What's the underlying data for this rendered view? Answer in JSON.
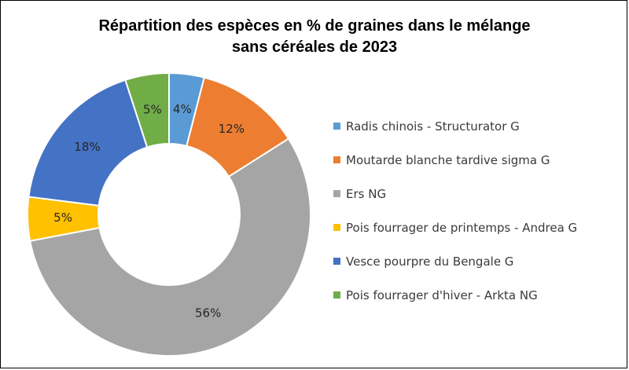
{
  "chart_data": {
    "type": "pie",
    "title": "Répartition des espèces en % de graines dans le mélange sans céréales de 2023",
    "title_lines": [
      "Répartition des espèces en % de graines dans le mélange",
      "sans céréales de 2023"
    ],
    "hole": 0.5,
    "legend_position": "right",
    "series": [
      {
        "name": "Radis chinois - Structurator G",
        "value": 4,
        "label": "4%",
        "color": "#5B9BD5"
      },
      {
        "name": "Moutarde blanche tardive sigma G",
        "value": 12,
        "label": "12%",
        "color": "#ED7D31"
      },
      {
        "name": "Ers NG",
        "value": 56,
        "label": "56%",
        "color": "#A5A5A5"
      },
      {
        "name": "Pois fourrager de printemps - Andrea G",
        "value": 5,
        "label": "5%",
        "color": "#FFC000"
      },
      {
        "name": "Vesce pourpre du Bengale G",
        "value": 18,
        "label": "18%",
        "color": "#4472C4"
      },
      {
        "name": "Pois fourrager d'hiver - Arkta NG",
        "value": 5,
        "label": "5%",
        "color": "#70AD47"
      }
    ]
  }
}
